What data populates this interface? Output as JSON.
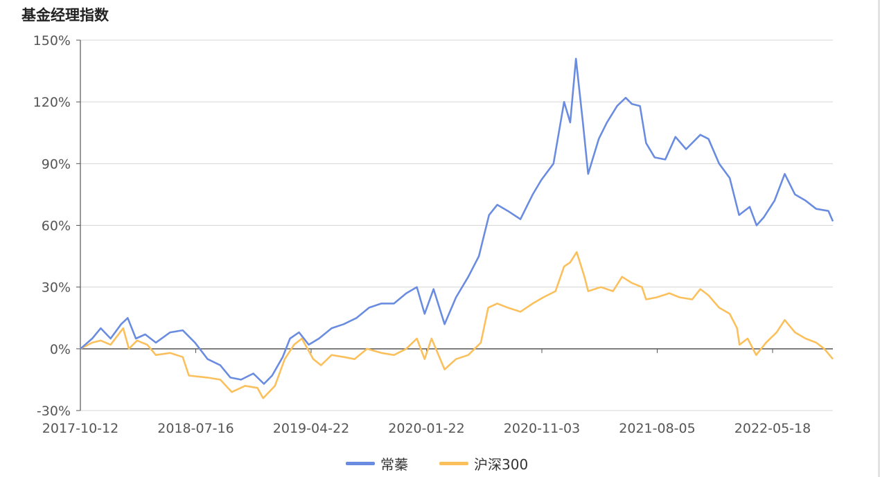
{
  "title": "基金经理指数",
  "chart_data": {
    "type": "line",
    "ylim": [
      -30,
      150
    ],
    "yticks": [
      -30,
      0,
      30,
      60,
      90,
      120,
      150
    ],
    "ytick_labels": [
      "-30%",
      "0%",
      "30%",
      "60%",
      "90%",
      "120%",
      "150%"
    ],
    "xtick_labels": [
      "2017-10-12",
      "2018-07-16",
      "2019-04-22",
      "2020-01-22",
      "2020-11-03",
      "2021-08-05",
      "2022-05-18"
    ],
    "x_start": "2017-10-12",
    "x_end": "2022-10-31",
    "grid": true,
    "legend_position": "bottom-center",
    "series": [
      {
        "name": "常蓁",
        "color": "#6a8ce0",
        "points": [
          [
            "2017-10-12",
            0
          ],
          [
            "2017-11-10",
            5
          ],
          [
            "2017-12-01",
            10
          ],
          [
            "2017-12-25",
            5
          ],
          [
            "2018-01-20",
            12
          ],
          [
            "2018-02-05",
            15
          ],
          [
            "2018-02-25",
            5
          ],
          [
            "2018-03-20",
            7
          ],
          [
            "2018-04-15",
            3
          ],
          [
            "2018-05-20",
            8
          ],
          [
            "2018-06-20",
            9
          ],
          [
            "2018-07-20",
            3
          ],
          [
            "2018-08-20",
            -5
          ],
          [
            "2018-09-20",
            -8
          ],
          [
            "2018-10-15",
            -14
          ],
          [
            "2018-11-10",
            -15
          ],
          [
            "2018-12-10",
            -12
          ],
          [
            "2019-01-05",
            -17
          ],
          [
            "2019-01-25",
            -13
          ],
          [
            "2019-02-20",
            -4
          ],
          [
            "2019-03-10",
            5
          ],
          [
            "2019-04-01",
            8
          ],
          [
            "2019-04-25",
            2
          ],
          [
            "2019-05-20",
            5
          ],
          [
            "2019-06-20",
            10
          ],
          [
            "2019-07-20",
            12
          ],
          [
            "2019-08-20",
            15
          ],
          [
            "2019-09-20",
            20
          ],
          [
            "2019-10-20",
            22
          ],
          [
            "2019-11-20",
            22
          ],
          [
            "2019-12-20",
            27
          ],
          [
            "2020-01-15",
            30
          ],
          [
            "2020-02-03",
            17
          ],
          [
            "2020-02-25",
            29
          ],
          [
            "2020-03-23",
            12
          ],
          [
            "2020-04-20",
            25
          ],
          [
            "2020-05-20",
            35
          ],
          [
            "2020-06-15",
            45
          ],
          [
            "2020-07-10",
            65
          ],
          [
            "2020-07-30",
            70
          ],
          [
            "2020-08-25",
            67
          ],
          [
            "2020-09-25",
            63
          ],
          [
            "2020-10-25",
            75
          ],
          [
            "2020-11-15",
            82
          ],
          [
            "2020-12-15",
            90
          ],
          [
            "2021-01-10",
            120
          ],
          [
            "2021-01-25",
            110
          ],
          [
            "2021-02-08",
            141
          ],
          [
            "2021-02-25",
            110
          ],
          [
            "2021-03-10",
            85
          ],
          [
            "2021-04-05",
            102
          ],
          [
            "2021-04-25",
            110
          ],
          [
            "2021-05-20",
            118
          ],
          [
            "2021-06-10",
            122
          ],
          [
            "2021-06-25",
            119
          ],
          [
            "2021-07-15",
            118
          ],
          [
            "2021-07-30",
            100
          ],
          [
            "2021-08-20",
            93
          ],
          [
            "2021-09-15",
            92
          ],
          [
            "2021-10-10",
            103
          ],
          [
            "2021-11-05",
            97
          ],
          [
            "2021-12-10",
            104
          ],
          [
            "2021-12-30",
            102
          ],
          [
            "2022-01-25",
            90
          ],
          [
            "2022-02-20",
            83
          ],
          [
            "2022-03-15",
            65
          ],
          [
            "2022-04-10",
            69
          ],
          [
            "2022-04-27",
            60
          ],
          [
            "2022-05-15",
            64
          ],
          [
            "2022-06-10",
            72
          ],
          [
            "2022-07-05",
            85
          ],
          [
            "2022-07-30",
            75
          ],
          [
            "2022-08-25",
            72
          ],
          [
            "2022-09-20",
            68
          ],
          [
            "2022-10-20",
            67
          ],
          [
            "2022-10-31",
            62
          ]
        ]
      },
      {
        "name": "沪深300",
        "color": "#fbc05c",
        "points": [
          [
            "2017-10-12",
            0
          ],
          [
            "2017-11-10",
            3
          ],
          [
            "2017-12-01",
            4
          ],
          [
            "2017-12-25",
            2
          ],
          [
            "2018-01-25",
            10
          ],
          [
            "2018-02-08",
            0
          ],
          [
            "2018-02-28",
            4
          ],
          [
            "2018-03-25",
            2
          ],
          [
            "2018-04-15",
            -3
          ],
          [
            "2018-05-20",
            -2
          ],
          [
            "2018-06-20",
            -4
          ],
          [
            "2018-07-05",
            -13
          ],
          [
            "2018-08-20",
            -14
          ],
          [
            "2018-09-20",
            -15
          ],
          [
            "2018-10-18",
            -21
          ],
          [
            "2018-11-20",
            -18
          ],
          [
            "2018-12-20",
            -19
          ],
          [
            "2019-01-03",
            -24
          ],
          [
            "2019-02-01",
            -18
          ],
          [
            "2019-02-25",
            -5
          ],
          [
            "2019-03-20",
            2
          ],
          [
            "2019-04-08",
            5
          ],
          [
            "2019-05-06",
            -5
          ],
          [
            "2019-05-25",
            -8
          ],
          [
            "2019-06-20",
            -3
          ],
          [
            "2019-07-20",
            -4
          ],
          [
            "2019-08-15",
            -5
          ],
          [
            "2019-09-15",
            0
          ],
          [
            "2019-10-20",
            -2
          ],
          [
            "2019-11-20",
            -3
          ],
          [
            "2019-12-20",
            0
          ],
          [
            "2020-01-15",
            5
          ],
          [
            "2020-02-03",
            -5
          ],
          [
            "2020-02-20",
            5
          ],
          [
            "2020-03-23",
            -10
          ],
          [
            "2020-04-20",
            -5
          ],
          [
            "2020-05-20",
            -3
          ],
          [
            "2020-06-20",
            3
          ],
          [
            "2020-07-08",
            20
          ],
          [
            "2020-07-30",
            22
          ],
          [
            "2020-08-25",
            20
          ],
          [
            "2020-09-25",
            18
          ],
          [
            "2020-10-25",
            22
          ],
          [
            "2020-11-20",
            25
          ],
          [
            "2020-12-20",
            28
          ],
          [
            "2021-01-10",
            40
          ],
          [
            "2021-01-25",
            42
          ],
          [
            "2021-02-10",
            47
          ],
          [
            "2021-03-01",
            35
          ],
          [
            "2021-03-10",
            28
          ],
          [
            "2021-04-10",
            30
          ],
          [
            "2021-05-10",
            28
          ],
          [
            "2021-06-01",
            35
          ],
          [
            "2021-06-25",
            32
          ],
          [
            "2021-07-20",
            30
          ],
          [
            "2021-07-30",
            24
          ],
          [
            "2021-08-25",
            25
          ],
          [
            "2021-09-25",
            27
          ],
          [
            "2021-10-20",
            25
          ],
          [
            "2021-11-20",
            24
          ],
          [
            "2021-12-10",
            29
          ],
          [
            "2021-12-30",
            26
          ],
          [
            "2022-01-25",
            20
          ],
          [
            "2022-02-20",
            17
          ],
          [
            "2022-03-10",
            10
          ],
          [
            "2022-03-16",
            2
          ],
          [
            "2022-04-05",
            5
          ],
          [
            "2022-04-26",
            -3
          ],
          [
            "2022-05-20",
            3
          ],
          [
            "2022-06-15",
            8
          ],
          [
            "2022-07-05",
            14
          ],
          [
            "2022-07-30",
            8
          ],
          [
            "2022-08-25",
            5
          ],
          [
            "2022-09-20",
            3
          ],
          [
            "2022-10-10",
            0
          ],
          [
            "2022-10-31",
            -5
          ]
        ]
      }
    ]
  }
}
